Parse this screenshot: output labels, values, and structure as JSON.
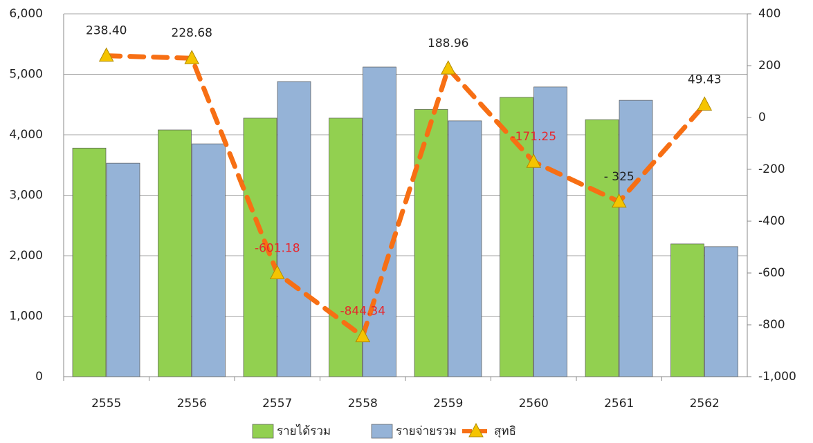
{
  "chart_data": {
    "type": "bar-line",
    "categories": [
      "2555",
      "2556",
      "2557",
      "2558",
      "2559",
      "2560",
      "2561",
      "2562"
    ],
    "series": [
      {
        "name": "รายได้รวม",
        "type": "bar",
        "color": "#92d050",
        "values": [
          3780,
          4080,
          4275,
          4275,
          4420,
          4620,
          4250,
          2195
        ]
      },
      {
        "name": "รายจ่ายรวม",
        "type": "bar",
        "color": "#95b3d7",
        "values": [
          3530,
          3850,
          4880,
          5120,
          4230,
          4790,
          4570,
          2150
        ]
      },
      {
        "name": "สุทธิ",
        "type": "line",
        "axis": "y2",
        "color": "#f76f14",
        "marker_color": "#f5c400",
        "values": [
          238.4,
          228.68,
          -601.18,
          -844.34,
          188.96,
          -171.25,
          -325,
          49.43
        ],
        "value_labels": [
          "238.40",
          "228.68",
          "-601.18",
          "-844.34",
          "188.96",
          "-171.25",
          "- 325",
          "49.43"
        ],
        "value_label_colors": [
          "#222222",
          "#222222",
          "#e8262b",
          "#e8262b",
          "#222222",
          "#e8262b",
          "#222222",
          "#222222"
        ]
      }
    ],
    "ylim": [
      0,
      6000
    ],
    "yticks": [
      0,
      {
        "value": 1000,
        "label": "1,000"
      },
      {
        "value": 2000,
        "label": "2,000"
      },
      {
        "value": 3000,
        "label": "3,000"
      },
      {
        "value": 4000,
        "label": "4,000"
      },
      {
        "value": 5000,
        "label": "5,000"
      },
      {
        "value": 6000,
        "label": "6,000"
      }
    ],
    "y2lim": [
      -1000,
      400
    ],
    "y2ticks": [
      {
        "value": -1000,
        "label": "-1,000"
      },
      -800,
      -600,
      -400,
      -200,
      0,
      200,
      400
    ],
    "grid": true,
    "legend": "bottom"
  }
}
